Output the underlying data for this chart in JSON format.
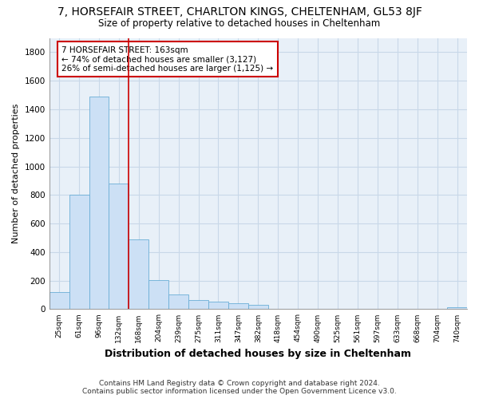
{
  "title": "7, HORSEFAIR STREET, CHARLTON KINGS, CHELTENHAM, GL53 8JF",
  "subtitle": "Size of property relative to detached houses in Cheltenham",
  "xlabel": "Distribution of detached houses by size in Cheltenham",
  "ylabel": "Number of detached properties",
  "footer_line1": "Contains HM Land Registry data © Crown copyright and database right 2024.",
  "footer_line2": "Contains public sector information licensed under the Open Government Licence v3.0.",
  "bar_labels": [
    "25sqm",
    "61sqm",
    "96sqm",
    "132sqm",
    "168sqm",
    "204sqm",
    "239sqm",
    "275sqm",
    "311sqm",
    "347sqm",
    "382sqm",
    "418sqm",
    "454sqm",
    "490sqm",
    "525sqm",
    "561sqm",
    "597sqm",
    "633sqm",
    "668sqm",
    "704sqm",
    "740sqm"
  ],
  "bar_values": [
    120,
    800,
    1490,
    880,
    490,
    205,
    105,
    65,
    50,
    40,
    30,
    2,
    2,
    2,
    2,
    2,
    2,
    2,
    2,
    2,
    15
  ],
  "bar_color": "#cce0f5",
  "bar_edgecolor": "#6aaed6",
  "red_line_index": 4,
  "annotation_text": "7 HORSEFAIR STREET: 163sqm\n← 74% of detached houses are smaller (3,127)\n26% of semi-detached houses are larger (1,125) →",
  "annotation_box_color": "#ffffff",
  "annotation_box_edgecolor": "#cc0000",
  "ylim": [
    0,
    1900
  ],
  "yticks": [
    0,
    200,
    400,
    600,
    800,
    1000,
    1200,
    1400,
    1600,
    1800
  ],
  "grid_color": "#c8d8e8",
  "background_color": "#e8f0f8",
  "figsize": [
    6.0,
    5.0
  ],
  "dpi": 100
}
